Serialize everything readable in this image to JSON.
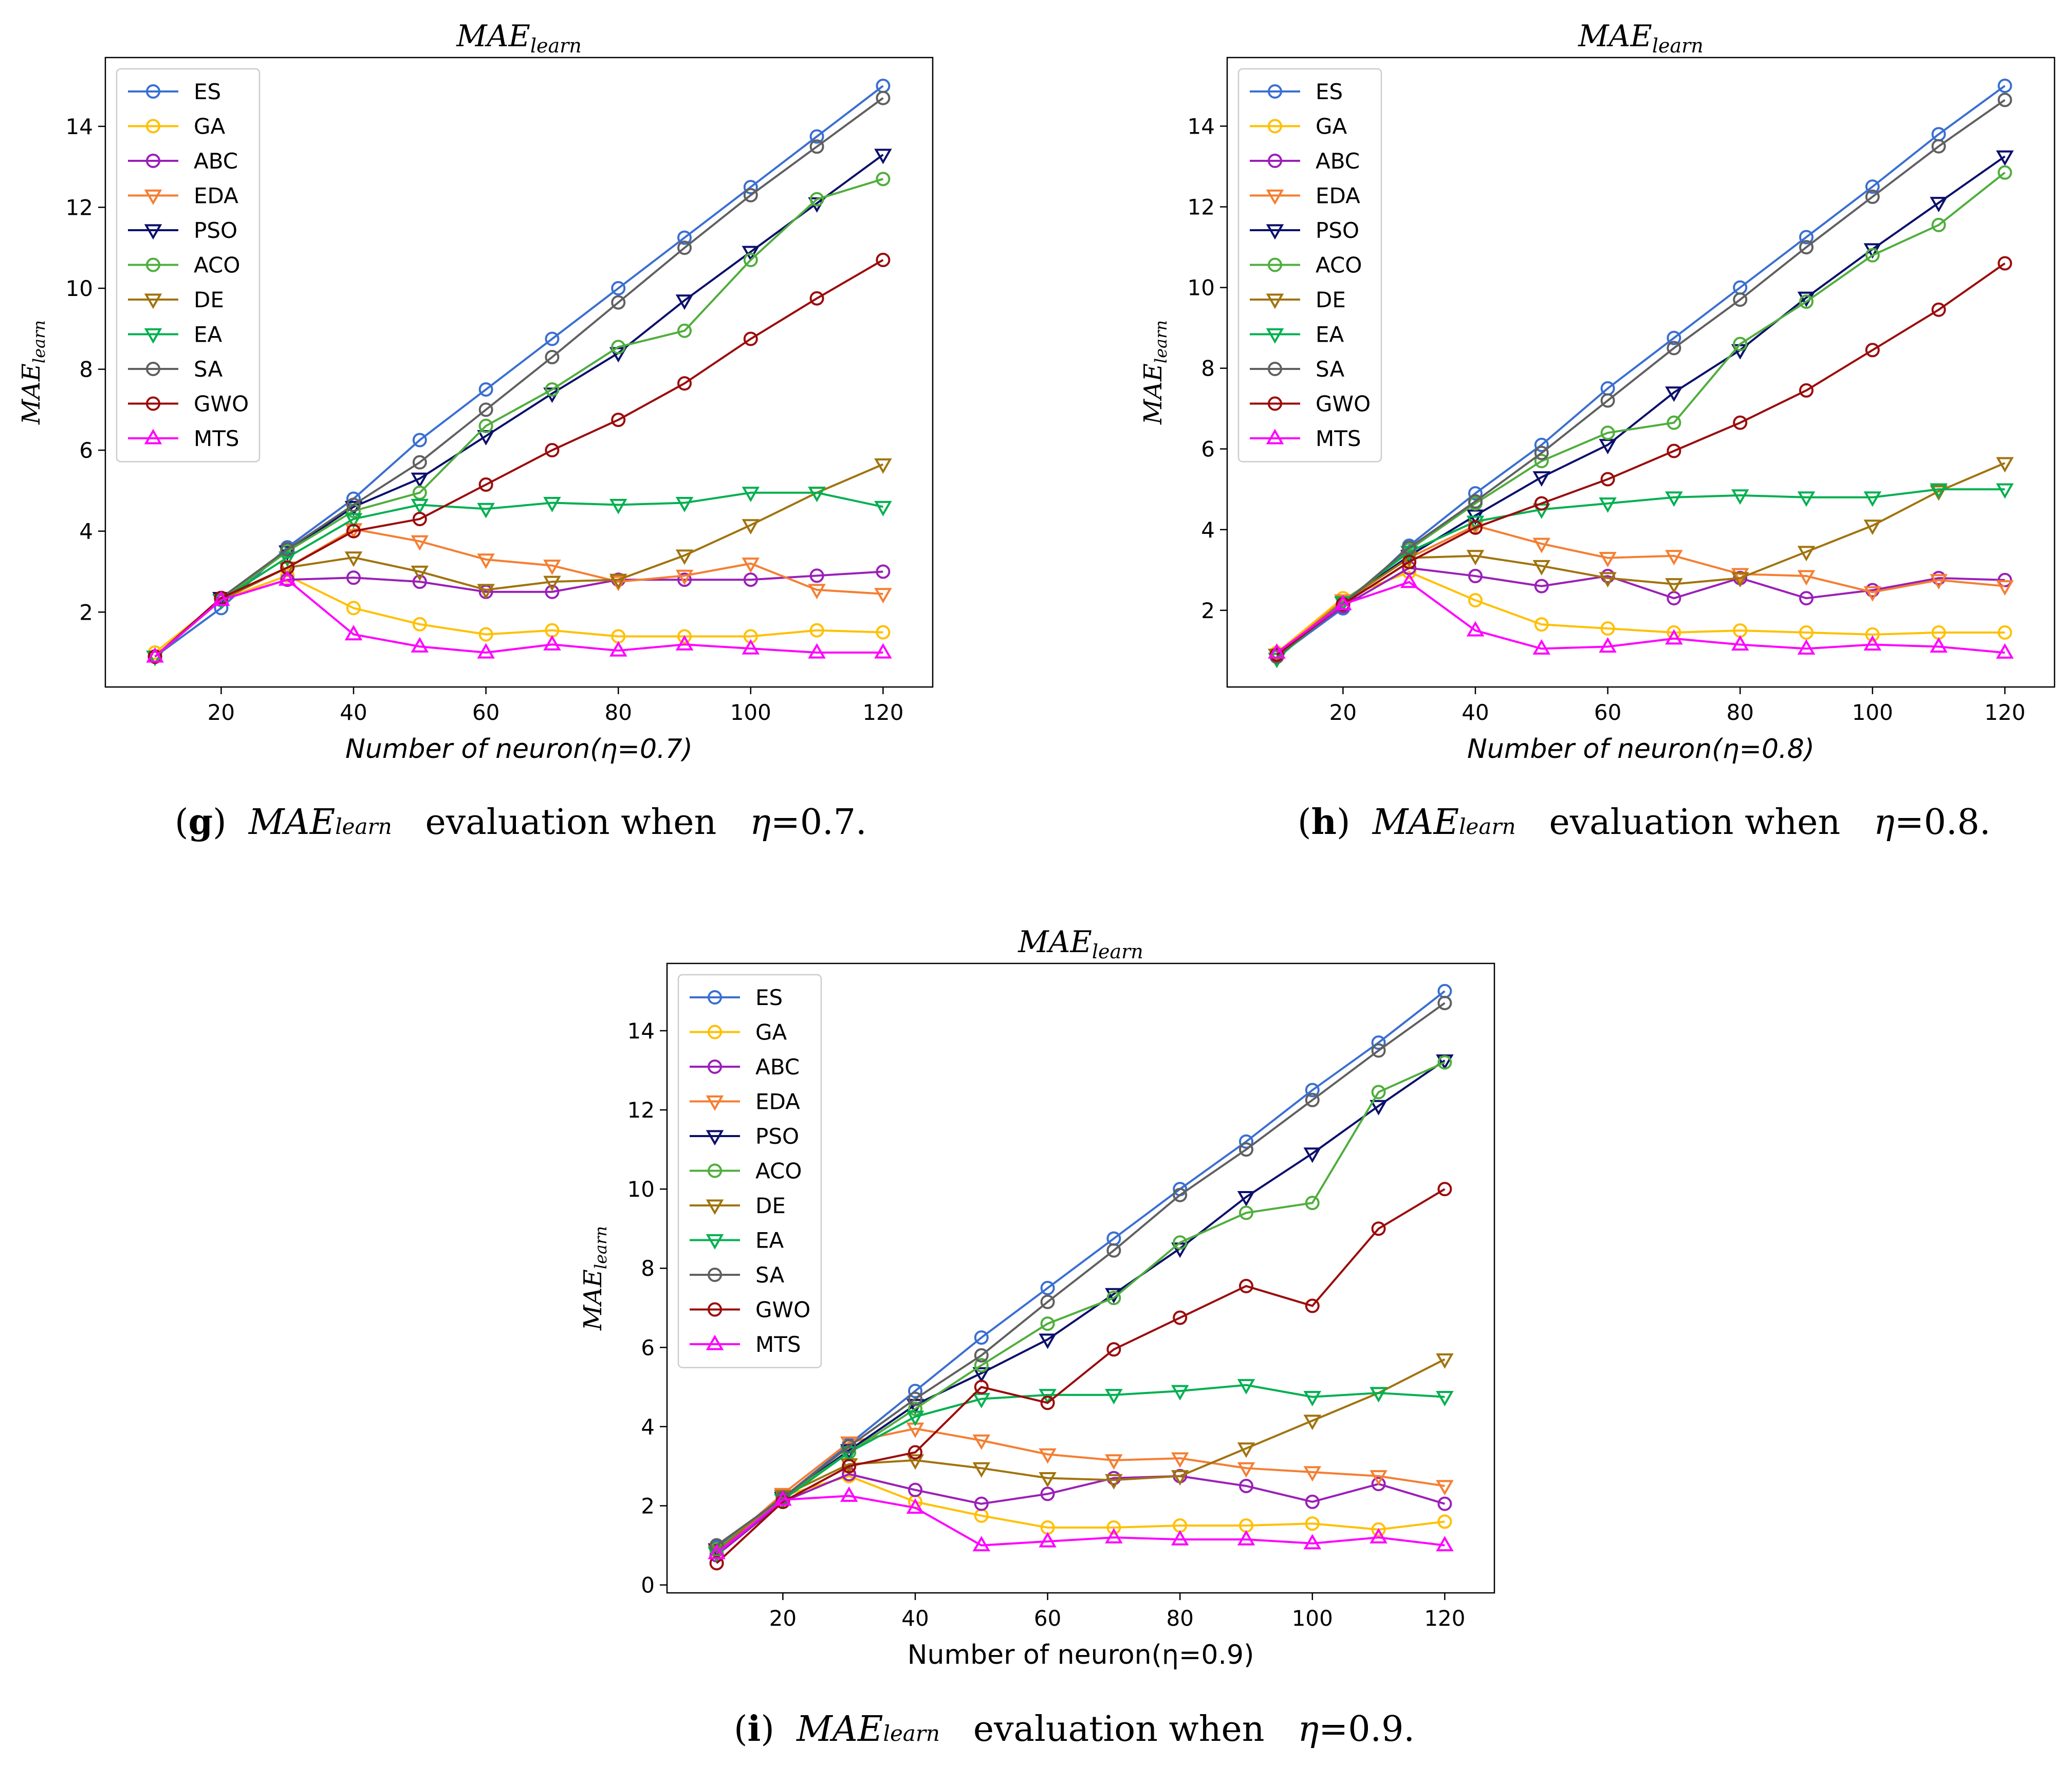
{
  "captions": [
    {
      "label": "g",
      "symbol": "MAE",
      "subscript": "learn",
      "text": "evaluation when",
      "eta_symbol": "η",
      "equals": "=",
      "eta_value": "0.7",
      "end": "."
    },
    {
      "label": "h",
      "symbol": "MAE",
      "subscript": "learn",
      "text": "evaluation when",
      "eta_symbol": "η",
      "equals": "=",
      "eta_value": "0.8",
      "end": "."
    },
    {
      "label": "i",
      "symbol": "MAE",
      "subscript": "learn",
      "text": "evaluation when",
      "eta_symbol": "η",
      "equals": "=",
      "eta_value": "0.9",
      "end": "."
    }
  ],
  "styles": {
    "ES": {
      "color": "#3a6fd1",
      "marker": "circle"
    },
    "GA": {
      "color": "#ffc000",
      "marker": "circle"
    },
    "ABC": {
      "color": "#9b1fb8",
      "marker": "circle"
    },
    "EDA": {
      "color": "#f57e32",
      "marker": "tri-down"
    },
    "PSO": {
      "color": "#0b0f6b",
      "marker": "tri-down"
    },
    "ACO": {
      "color": "#4fae3c",
      "marker": "circle"
    },
    "DE": {
      "color": "#a0730d",
      "marker": "tri-down"
    },
    "EA": {
      "color": "#00b050",
      "marker": "tri-down"
    },
    "SA": {
      "color": "#606060",
      "marker": "circle"
    },
    "GWO": {
      "color": "#9b0b0b",
      "marker": "circle"
    },
    "MTS": {
      "color": "#ff00ff",
      "marker": "tri-up"
    }
  },
  "chart_data": [
    {
      "type": "line",
      "title": "MAE",
      "title_sub": "learn",
      "ylabel": "MAE",
      "ylabel_sub": "learn",
      "xlabel": "Number of neuron(η=0.7)",
      "x": [
        10,
        20,
        30,
        40,
        50,
        60,
        70,
        80,
        90,
        100,
        110,
        120
      ],
      "xticks": [
        20,
        40,
        60,
        80,
        100,
        120
      ],
      "yticks": [
        2,
        4,
        6,
        8,
        10,
        12,
        14
      ],
      "xlim": [
        2.5,
        127.5
      ],
      "ylim": [
        0.15,
        15.7
      ],
      "legend": "top-left",
      "series": [
        {
          "name": "ES",
          "values": [
            0.9,
            2.1,
            3.6,
            4.8,
            6.25,
            7.5,
            8.75,
            10.0,
            11.25,
            12.5,
            13.75,
            15.0
          ]
        },
        {
          "name": "GA",
          "values": [
            1.0,
            2.3,
            2.9,
            2.1,
            1.7,
            1.45,
            1.55,
            1.4,
            1.4,
            1.4,
            1.55,
            1.5
          ]
        },
        {
          "name": "ABC",
          "values": [
            0.9,
            2.3,
            2.8,
            2.85,
            2.75,
            2.5,
            2.5,
            2.8,
            2.8,
            2.8,
            2.9,
            3.0
          ]
        },
        {
          "name": "EDA",
          "values": [
            0.9,
            2.35,
            3.1,
            4.05,
            3.75,
            3.3,
            3.15,
            2.75,
            2.9,
            3.2,
            2.55,
            2.45
          ]
        },
        {
          "name": "PSO",
          "values": [
            0.9,
            2.35,
            3.5,
            4.6,
            5.3,
            6.35,
            7.4,
            8.4,
            9.7,
            10.9,
            12.1,
            13.3
          ]
        },
        {
          "name": "ACO",
          "values": [
            0.9,
            2.3,
            3.5,
            4.5,
            4.95,
            6.6,
            7.5,
            8.55,
            8.95,
            10.7,
            12.2,
            12.7
          ]
        },
        {
          "name": "DE",
          "values": [
            0.9,
            2.3,
            3.1,
            3.35,
            3.0,
            2.55,
            2.75,
            2.8,
            3.4,
            4.15,
            4.95,
            5.65
          ]
        },
        {
          "name": "EA",
          "values": [
            0.9,
            2.3,
            3.35,
            4.3,
            4.65,
            4.55,
            4.7,
            4.65,
            4.7,
            4.95,
            4.95,
            4.6
          ]
        },
        {
          "name": "SA",
          "values": [
            0.9,
            2.35,
            3.55,
            4.65,
            5.7,
            7.0,
            8.3,
            9.65,
            11.0,
            12.3,
            13.5,
            14.7
          ]
        },
        {
          "name": "GWO",
          "values": [
            0.9,
            2.35,
            3.1,
            4.0,
            4.3,
            5.15,
            6.0,
            6.75,
            7.65,
            8.75,
            9.75,
            10.7
          ]
        },
        {
          "name": "MTS",
          "values": [
            0.9,
            2.3,
            2.8,
            1.45,
            1.15,
            1.0,
            1.2,
            1.05,
            1.2,
            1.1,
            1.0,
            1.0
          ]
        }
      ]
    },
    {
      "type": "line",
      "title": "MAE",
      "title_sub": "learn",
      "ylabel": "MAE",
      "ylabel_sub": "learn",
      "xlabel": "Number of neuron(η=0.8)",
      "x": [
        10,
        20,
        30,
        40,
        50,
        60,
        70,
        80,
        90,
        100,
        110,
        120
      ],
      "xticks": [
        20,
        40,
        60,
        80,
        100,
        120
      ],
      "yticks": [
        2,
        4,
        6,
        8,
        10,
        12,
        14
      ],
      "xlim": [
        2.5,
        127.5
      ],
      "ylim": [
        0.1,
        15.7
      ],
      "legend": "top-left",
      "series": [
        {
          "name": "ES",
          "values": [
            0.85,
            2.05,
            3.6,
            4.9,
            6.1,
            7.5,
            8.75,
            10.0,
            11.25,
            12.5,
            13.8,
            15.0
          ]
        },
        {
          "name": "GA",
          "values": [
            0.95,
            2.3,
            2.95,
            2.25,
            1.65,
            1.55,
            1.45,
            1.5,
            1.45,
            1.4,
            1.45,
            1.45
          ]
        },
        {
          "name": "ABC",
          "values": [
            0.9,
            2.1,
            3.05,
            2.85,
            2.6,
            2.85,
            2.3,
            2.8,
            2.3,
            2.5,
            2.8,
            2.75
          ]
        },
        {
          "name": "EDA",
          "values": [
            0.9,
            2.25,
            3.3,
            4.1,
            3.65,
            3.3,
            3.35,
            2.9,
            2.85,
            2.45,
            2.75,
            2.6
          ]
        },
        {
          "name": "PSO",
          "values": [
            0.9,
            2.2,
            3.35,
            4.35,
            5.3,
            6.1,
            7.4,
            8.45,
            9.75,
            10.95,
            12.1,
            13.25
          ]
        },
        {
          "name": "ACO",
          "values": [
            0.85,
            2.15,
            3.5,
            4.65,
            5.7,
            6.4,
            6.65,
            8.6,
            9.65,
            10.8,
            11.55,
            12.85
          ]
        },
        {
          "name": "DE",
          "values": [
            0.9,
            2.2,
            3.3,
            3.35,
            3.1,
            2.8,
            2.65,
            2.8,
            3.45,
            4.1,
            4.95,
            5.65
          ]
        },
        {
          "name": "EA",
          "values": [
            0.8,
            2.2,
            3.45,
            4.2,
            4.5,
            4.65,
            4.8,
            4.85,
            4.8,
            4.8,
            5.0,
            5.0
          ]
        },
        {
          "name": "SA",
          "values": [
            0.85,
            2.15,
            3.55,
            4.7,
            5.9,
            7.2,
            8.5,
            9.7,
            11.0,
            12.25,
            13.5,
            14.65
          ]
        },
        {
          "name": "GWO",
          "values": [
            0.9,
            2.15,
            3.2,
            4.05,
            4.65,
            5.25,
            5.95,
            6.65,
            7.45,
            8.45,
            9.45,
            10.6
          ]
        },
        {
          "name": "MTS",
          "values": [
            0.95,
            2.15,
            2.7,
            1.5,
            1.05,
            1.1,
            1.3,
            1.15,
            1.05,
            1.15,
            1.1,
            0.95
          ]
        }
      ]
    },
    {
      "type": "line",
      "title": "MAE",
      "title_sub": "learn",
      "ylabel": "MAE",
      "ylabel_sub": "learn",
      "xlabel": "Number of neuron(η=0.9)",
      "x": [
        10,
        20,
        30,
        40,
        50,
        60,
        70,
        80,
        90,
        100,
        110,
        120
      ],
      "xticks": [
        20,
        40,
        60,
        80,
        100,
        120
      ],
      "yticks": [
        0,
        2,
        4,
        6,
        8,
        10,
        12,
        14
      ],
      "xlim": [
        2.5,
        127.5
      ],
      "ylim": [
        -0.2,
        15.7
      ],
      "legend": "top-left",
      "series": [
        {
          "name": "ES",
          "values": [
            0.95,
            2.2,
            3.55,
            4.9,
            6.25,
            7.5,
            8.75,
            10.0,
            11.2,
            12.5,
            13.7,
            15.0
          ]
        },
        {
          "name": "GA",
          "values": [
            0.85,
            2.25,
            2.75,
            2.1,
            1.75,
            1.45,
            1.45,
            1.5,
            1.5,
            1.55,
            1.4,
            1.6
          ]
        },
        {
          "name": "ABC",
          "values": [
            0.75,
            2.1,
            2.8,
            2.4,
            2.05,
            2.3,
            2.7,
            2.75,
            2.5,
            2.1,
            2.55,
            2.05
          ]
        },
        {
          "name": "EDA",
          "values": [
            0.85,
            2.3,
            3.6,
            3.95,
            3.65,
            3.3,
            3.15,
            3.2,
            2.95,
            2.85,
            2.75,
            2.5
          ]
        },
        {
          "name": "PSO",
          "values": [
            0.9,
            2.2,
            3.4,
            4.55,
            5.35,
            6.2,
            7.35,
            8.5,
            9.8,
            10.9,
            12.1,
            13.25
          ]
        },
        {
          "name": "ACO",
          "values": [
            0.9,
            2.2,
            3.35,
            4.45,
            5.55,
            6.6,
            7.25,
            8.65,
            9.4,
            9.65,
            12.45,
            13.2
          ]
        },
        {
          "name": "DE",
          "values": [
            0.85,
            2.25,
            3.05,
            3.15,
            2.95,
            2.7,
            2.65,
            2.75,
            3.45,
            4.15,
            4.85,
            5.7
          ]
        },
        {
          "name": "EA",
          "values": [
            0.8,
            2.15,
            3.35,
            4.25,
            4.7,
            4.8,
            4.8,
            4.9,
            5.05,
            4.75,
            4.85,
            4.75
          ]
        },
        {
          "name": "SA",
          "values": [
            1.0,
            2.2,
            3.5,
            4.7,
            5.8,
            7.15,
            8.45,
            9.85,
            11.0,
            12.25,
            13.5,
            14.7
          ]
        },
        {
          "name": "GWO",
          "values": [
            0.55,
            2.1,
            3.0,
            3.35,
            5.0,
            4.6,
            5.95,
            6.75,
            7.55,
            7.05,
            9.0,
            10.0
          ]
        },
        {
          "name": "MTS",
          "values": [
            0.8,
            2.15,
            2.25,
            1.95,
            1.0,
            1.1,
            1.2,
            1.15,
            1.15,
            1.05,
            1.2,
            1.0
          ]
        }
      ]
    }
  ]
}
